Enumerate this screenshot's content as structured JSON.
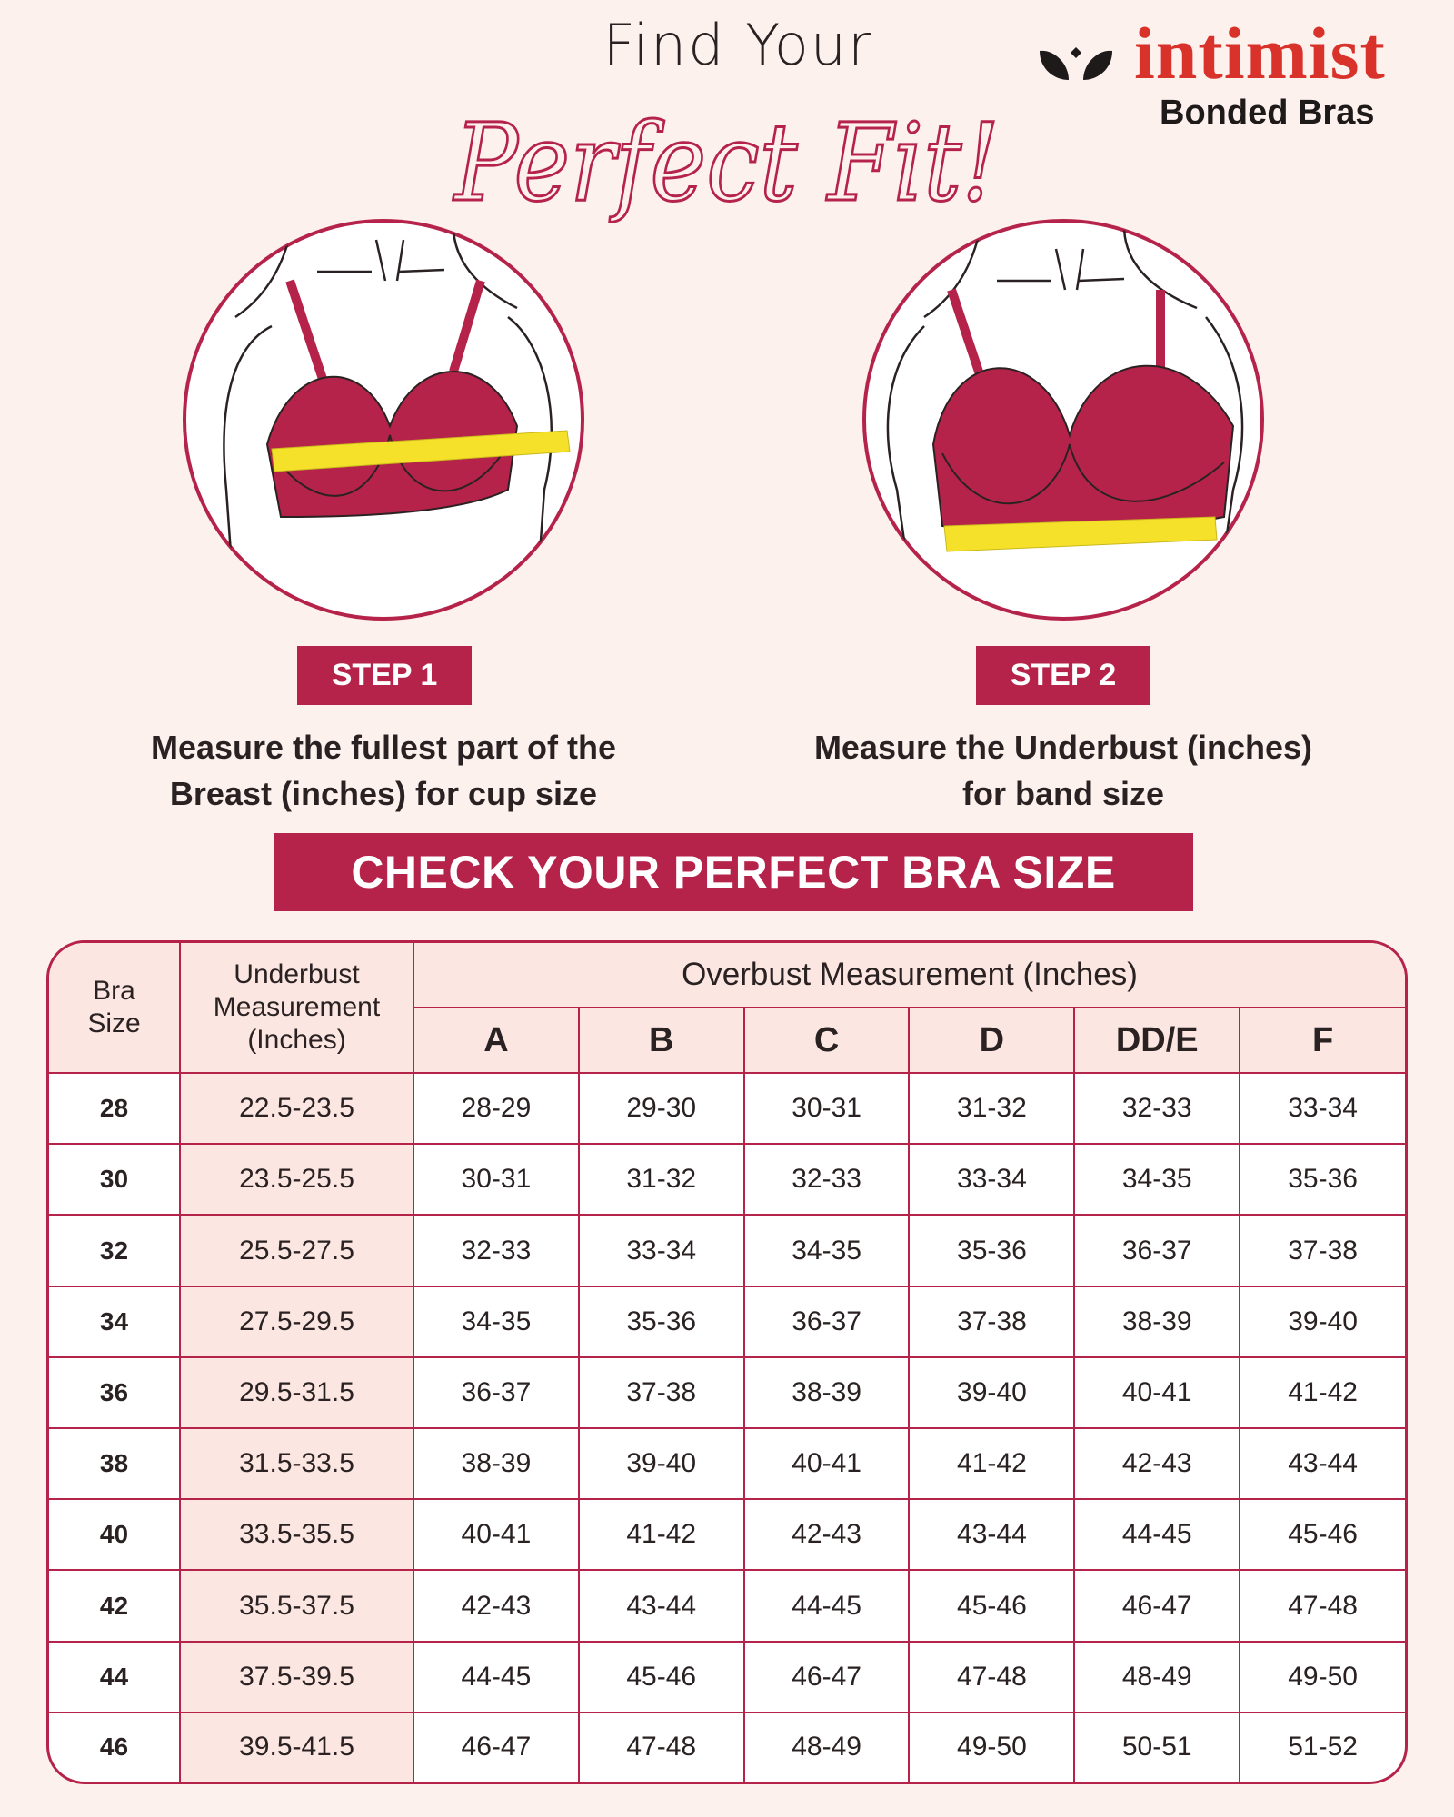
{
  "header": {
    "title_line1": "Find Your",
    "title_script": "Perfect Fit!"
  },
  "logo": {
    "brand": "intimist",
    "subtitle": "Bonded Bras",
    "brand_color": "#d8322a"
  },
  "steps": [
    {
      "badge": "STEP 1",
      "line1": "Measure the fullest part of the",
      "line2": "Breast (inches) for cup size"
    },
    {
      "badge": "STEP 2",
      "line1": "Measure the Underbust (inches)",
      "line2": "for band size"
    }
  ],
  "banner": "CHECK YOUR PERFECT BRA SIZE",
  "colors": {
    "accent": "#b5234a",
    "background": "#fdf1ee",
    "header_fill": "#fce6e2",
    "tape": "#f5e12a"
  },
  "table": {
    "col_bra_size": "Bra Size",
    "col_bra_size_l1": "Bra",
    "col_bra_size_l2": "Size",
    "col_underbust_l1": "Underbust",
    "col_underbust_l2": "Measurement",
    "col_underbust_l3": "(Inches)",
    "col_overbust": "Overbust Measurement (Inches)",
    "cups": [
      "A",
      "B",
      "C",
      "D",
      "DD/E",
      "F"
    ],
    "rows": [
      {
        "band": "28",
        "underbust": "22.5-23.5",
        "values": [
          "28-29",
          "29-30",
          "30-31",
          "31-32",
          "32-33",
          "33-34"
        ]
      },
      {
        "band": "30",
        "underbust": "23.5-25.5",
        "values": [
          "30-31",
          "31-32",
          "32-33",
          "33-34",
          "34-35",
          "35-36"
        ]
      },
      {
        "band": "32",
        "underbust": "25.5-27.5",
        "values": [
          "32-33",
          "33-34",
          "34-35",
          "35-36",
          "36-37",
          "37-38"
        ]
      },
      {
        "band": "34",
        "underbust": "27.5-29.5",
        "values": [
          "34-35",
          "35-36",
          "36-37",
          "37-38",
          "38-39",
          "39-40"
        ]
      },
      {
        "band": "36",
        "underbust": "29.5-31.5",
        "values": [
          "36-37",
          "37-38",
          "38-39",
          "39-40",
          "40-41",
          "41-42"
        ]
      },
      {
        "band": "38",
        "underbust": "31.5-33.5",
        "values": [
          "38-39",
          "39-40",
          "40-41",
          "41-42",
          "42-43",
          "43-44"
        ]
      },
      {
        "band": "40",
        "underbust": "33.5-35.5",
        "values": [
          "40-41",
          "41-42",
          "42-43",
          "43-44",
          "44-45",
          "45-46"
        ]
      },
      {
        "band": "42",
        "underbust": "35.5-37.5",
        "values": [
          "42-43",
          "43-44",
          "44-45",
          "45-46",
          "46-47",
          "47-48"
        ]
      },
      {
        "band": "44",
        "underbust": "37.5-39.5",
        "values": [
          "44-45",
          "45-46",
          "46-47",
          "47-48",
          "48-49",
          "49-50"
        ]
      },
      {
        "band": "46",
        "underbust": "39.5-41.5",
        "values": [
          "46-47",
          "47-48",
          "48-49",
          "49-50",
          "50-51",
          "51-52"
        ]
      }
    ]
  }
}
